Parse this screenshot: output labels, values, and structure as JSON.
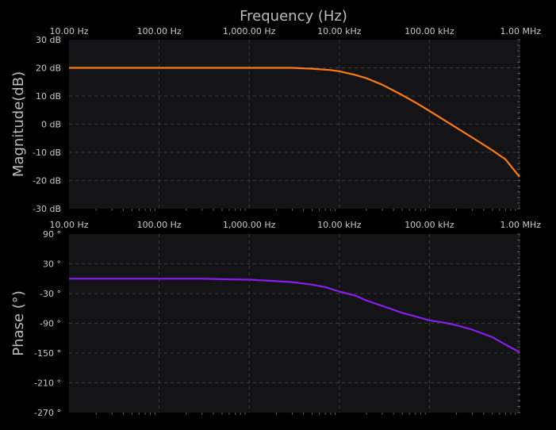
{
  "chart_data": [
    {
      "type": "line",
      "panel": "magnitude",
      "title": "Frequency (Hz)",
      "xlabel": "Frequency (Hz)",
      "ylabel": "Magnitude(dB)",
      "x_scale": "log",
      "xlim": [
        10,
        1000000
      ],
      "ylim": [
        -30,
        30
      ],
      "x_ticks": [
        {
          "value": 10,
          "label": "10.00 Hz"
        },
        {
          "value": 100,
          "label": "100.00 Hz"
        },
        {
          "value": 1000,
          "label": "1,000.00 Hz"
        },
        {
          "value": 10000,
          "label": "10.00 kHz"
        },
        {
          "value": 100000,
          "label": "100.00 kHz"
        },
        {
          "value": 1000000,
          "label": "1.00 MHz"
        }
      ],
      "y_ticks": [
        {
          "value": 30,
          "label": "30 dB"
        },
        {
          "value": 20,
          "label": "20 dB"
        },
        {
          "value": 10,
          "label": "10 dB"
        },
        {
          "value": 0,
          "label": "0 dB"
        },
        {
          "value": -10,
          "label": "-10 dB"
        },
        {
          "value": -20,
          "label": "-20 dB"
        },
        {
          "value": -30,
          "label": "-30 dB"
        }
      ],
      "grid": true,
      "series": [
        {
          "color": "#ff7a10",
          "x": [
            10,
            100,
            1000,
            3000,
            5000,
            8000,
            10000,
            15000,
            20000,
            30000,
            50000,
            70000,
            100000,
            200000,
            300000,
            500000,
            700000,
            1000000
          ],
          "values": [
            20,
            20,
            20,
            20,
            19.7,
            19.2,
            18.8,
            17.5,
            16.3,
            14,
            10.3,
            7.7,
            4.7,
            -1.3,
            -4.8,
            -9.3,
            -12.5,
            -18.7
          ]
        }
      ]
    },
    {
      "type": "line",
      "panel": "phase",
      "xlabel": "",
      "ylabel": "Phase (°)",
      "x_scale": "log",
      "xlim": [
        10,
        1000000
      ],
      "ylim": [
        -270,
        90
      ],
      "x_ticks": [
        {
          "value": 10,
          "label": "10.00 Hz"
        },
        {
          "value": 100,
          "label": "100.00 Hz"
        },
        {
          "value": 1000,
          "label": "1,000.00 Hz"
        },
        {
          "value": 10000,
          "label": "10.00 kHz"
        },
        {
          "value": 100000,
          "label": "100.00 kHz"
        },
        {
          "value": 1000000,
          "label": "1.00 MHz"
        }
      ],
      "y_ticks": [
        {
          "value": 90,
          "label": "90 °"
        },
        {
          "value": 30,
          "label": "30 °"
        },
        {
          "value": -30,
          "label": "-30 °"
        },
        {
          "value": -90,
          "label": "-90 °"
        },
        {
          "value": -150,
          "label": "-150 °"
        },
        {
          "value": -210,
          "label": "-210 °"
        },
        {
          "value": -270,
          "label": "-270 °"
        }
      ],
      "grid": true,
      "series": [
        {
          "color": "#8a1cf0",
          "x": [
            10,
            100,
            300,
            500,
            1000,
            2000,
            3000,
            5000,
            7000,
            10000,
            15000,
            20000,
            30000,
            50000,
            70000,
            100000,
            150000,
            200000,
            300000,
            500000,
            700000,
            1000000
          ],
          "values": [
            0,
            0,
            0,
            -1,
            -2,
            -5,
            -7,
            -12,
            -17,
            -26,
            -34,
            -44,
            -55,
            -69,
            -76,
            -84,
            -89,
            -94,
            -103,
            -118,
            -133,
            -148
          ]
        }
      ]
    }
  ]
}
